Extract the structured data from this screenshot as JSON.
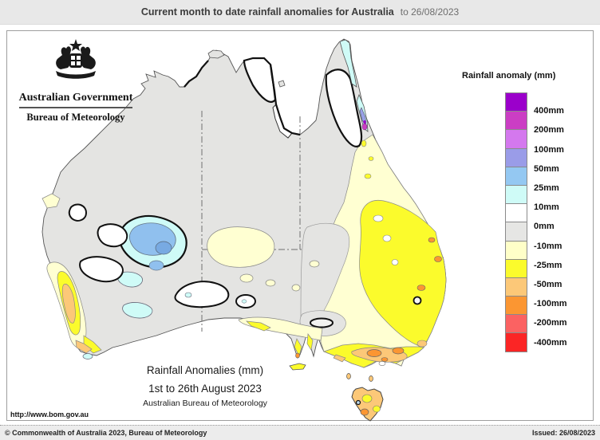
{
  "header": {
    "title": "Current month to date rainfall anomalies for Australia",
    "date": "to 26/08/2023"
  },
  "logo": {
    "government": "Australian Government",
    "bureau": "Bureau of Meteorology"
  },
  "legend": {
    "title": "Rainfall anomaly (mm)",
    "swatches": [
      "#9b00cb",
      "#cb3ec4",
      "#d478ee",
      "#9a9ce8",
      "#94c8f2",
      "#cffbf7",
      "#ffffff",
      "#e6e6e4",
      "#ffffc8",
      "#fbfb2c",
      "#fcc878",
      "#fb9632",
      "#fb6262",
      "#fb2525"
    ],
    "labels": [
      "400mm",
      "200mm",
      "100mm",
      "50mm",
      "25mm",
      "10mm",
      "0mm",
      "-10mm",
      "-25mm",
      "-50mm",
      "-100mm",
      "-200mm",
      "-400mm"
    ]
  },
  "caption": {
    "line1": "Rainfall Anomalies (mm)",
    "line2": "1st to 26th August 2023",
    "line3": "Australian Bureau of Meteorology"
  },
  "map": {
    "url": "http://www.bom.gov.au"
  },
  "footer": {
    "copyright": "© Commonwealth of Australia 2023, Bureau of Meteorology",
    "issued": "Issued: 26/08/2023"
  }
}
